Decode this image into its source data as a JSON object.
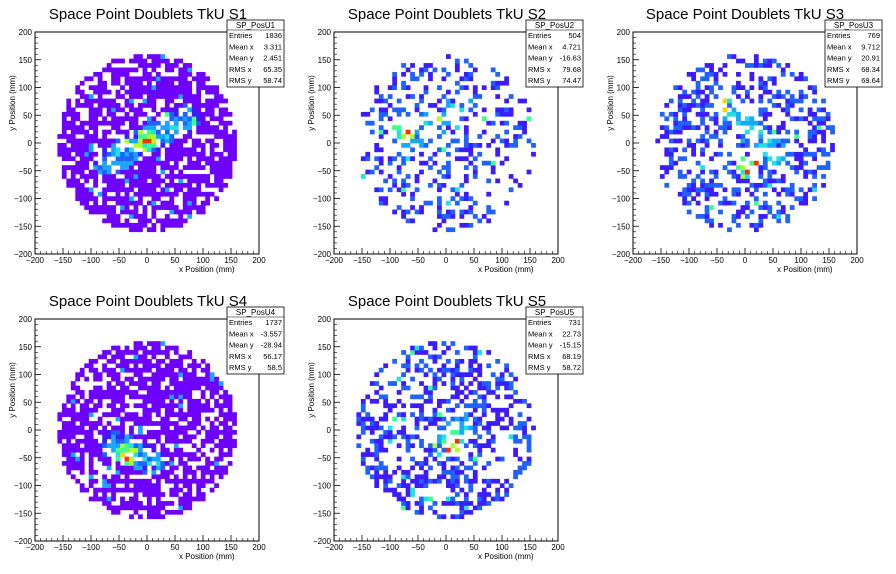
{
  "chart_data": [
    {
      "type": "heatmap",
      "title": "Space Point Doublets TkU S1",
      "xlabel": "x Position (mm)",
      "ylabel": "y Position (mm)",
      "xlim": [
        -200,
        200
      ],
      "ylim": [
        -200,
        200
      ],
      "xticks": [
        "−200",
        "−150",
        "−100",
        "−50",
        "0",
        "50",
        "100",
        "150",
        "200"
      ],
      "yticks": [
        "−200",
        "−150",
        "−100",
        "−50",
        "0",
        "50",
        "100",
        "150",
        "200"
      ],
      "stats": {
        "name": "SP_PosU1",
        "rows": [
          [
            "Entries",
            "1836"
          ],
          [
            "Mean x",
            "3.311"
          ],
          [
            "Mean y",
            "2.451"
          ],
          [
            "RMS x",
            "65.35"
          ],
          [
            "RMS y",
            "58.74"
          ]
        ]
      },
      "distribution": {
        "radius": 160,
        "density": 0.72,
        "hot_spot": [
          0,
          5
        ],
        "hot_line": [
          [
            -70,
            -35
          ],
          [
            70,
            45
          ]
        ],
        "base_color": "#6e00ff",
        "seed": 11
      }
    },
    {
      "type": "heatmap",
      "title": "Space Point Doublets TkU S2",
      "xlabel": "x Position (mm)",
      "ylabel": "y Position (mm)",
      "xlim": [
        -200,
        200
      ],
      "ylim": [
        -200,
        200
      ],
      "xticks": [
        "−200",
        "−150",
        "−100",
        "−50",
        "0",
        "50",
        "100",
        "150",
        "200"
      ],
      "yticks": [
        "−200",
        "−150",
        "−100",
        "−50",
        "0",
        "50",
        "100",
        "150",
        "200"
      ],
      "stats": {
        "name": "SP_PosU2",
        "rows": [
          [
            "Entries",
            "504"
          ],
          [
            "Mean x",
            "4.721"
          ],
          [
            "Mean y",
            "-16.63"
          ],
          [
            "RMS x",
            "79.68"
          ],
          [
            "RMS y",
            "74.47"
          ]
        ]
      },
      "distribution": {
        "radius": 160,
        "density": 0.3,
        "hot_spot": [
          -75,
          20
        ],
        "hot_line": [
          [
            -80,
            0
          ],
          [
            30,
            70
          ]
        ],
        "base_color": "#1f62ff",
        "seed": 23
      }
    },
    {
      "type": "heatmap",
      "title": "Space Point Doublets TkU S3",
      "xlabel": "x Position (mm)",
      "ylabel": "y Position (mm)",
      "xlim": [
        -200,
        200
      ],
      "ylim": [
        -200,
        200
      ],
      "xticks": [
        "−200",
        "−150",
        "−100",
        "−50",
        "0",
        "50",
        "100",
        "150",
        "200"
      ],
      "yticks": [
        "−200",
        "−150",
        "−100",
        "−50",
        "0",
        "50",
        "100",
        "150",
        "200"
      ],
      "stats": {
        "name": "SP_PosU3",
        "rows": [
          [
            "Entries",
            "769"
          ],
          [
            "Mean x",
            "9.712"
          ],
          [
            "Mean y",
            "20.91"
          ],
          [
            "RMS x",
            "68.34"
          ],
          [
            "RMS y",
            "69.64"
          ]
        ]
      },
      "distribution": {
        "radius": 160,
        "density": 0.42,
        "hot_spot": [
          5,
          -45
        ],
        "hot_line": [
          [
            -30,
            70
          ],
          [
            60,
            -30
          ]
        ],
        "base_color": "#1f62ff",
        "seed": 37
      }
    },
    {
      "type": "heatmap",
      "title": "Space Point Doublets TkU S4",
      "xlabel": "x Position (mm)",
      "ylabel": "y Position (mm)",
      "xlim": [
        -200,
        200
      ],
      "ylim": [
        -200,
        200
      ],
      "xticks": [
        "−200",
        "−150",
        "−100",
        "−50",
        "0",
        "50",
        "100",
        "150",
        "200"
      ],
      "yticks": [
        "−200",
        "−150",
        "−100",
        "−50",
        "0",
        "50",
        "100",
        "150",
        "200"
      ],
      "stats": {
        "name": "SP_PosU4",
        "rows": [
          [
            "Entries",
            "1737"
          ],
          [
            "Mean x",
            "-3.557"
          ],
          [
            "Mean y",
            "-28.94"
          ],
          [
            "RMS x",
            "56.17"
          ],
          [
            "RMS y",
            "58.5"
          ]
        ]
      },
      "distribution": {
        "radius": 160,
        "density": 0.7,
        "hot_spot": [
          -35,
          -45
        ],
        "hot_line": [
          [
            -60,
            -25
          ],
          [
            10,
            -55
          ]
        ],
        "base_color": "#6e00ff",
        "seed": 41
      }
    },
    {
      "type": "heatmap",
      "title": "Space Point Doublets TkU S5",
      "xlabel": "x Position (mm)",
      "ylabel": "y Position (mm)",
      "xlim": [
        -200,
        200
      ],
      "ylim": [
        -200,
        200
      ],
      "xticks": [
        "−200",
        "−150",
        "−100",
        "−50",
        "0",
        "50",
        "100",
        "150",
        "200"
      ],
      "yticks": [
        "−200",
        "−150",
        "−100",
        "−50",
        "0",
        "50",
        "100",
        "150",
        "200"
      ],
      "stats": {
        "name": "SP_PosU5",
        "rows": [
          [
            "Entries",
            "731"
          ],
          [
            "Mean x",
            "22.73"
          ],
          [
            "Mean y",
            "-15.15"
          ],
          [
            "RMS x",
            "68.19"
          ],
          [
            "RMS y",
            "58.72"
          ]
        ]
      },
      "distribution": {
        "radius": 160,
        "density": 0.45,
        "hot_spot": [
          15,
          -20
        ],
        "hot_line": [
          [
            -20,
            -20
          ],
          [
            40,
            10
          ]
        ],
        "base_color": "#2a2aff",
        "seed": 53
      }
    }
  ]
}
